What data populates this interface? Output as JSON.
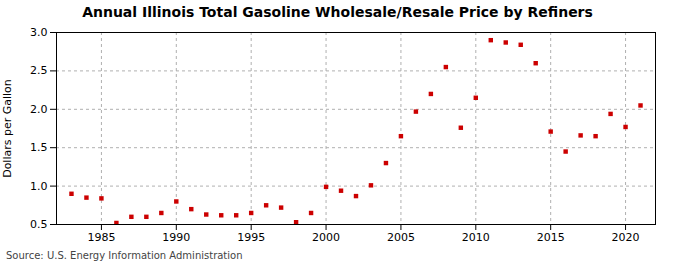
{
  "chart_data": {
    "type": "scatter",
    "title": "Annual Illinois Total Gasoline Wholesale/Resale Price by Refiners",
    "ylabel": "Dollars per Gallon",
    "annotations": [
      "Source: U.S. Energy Information Administration"
    ],
    "x": [
      1983,
      1984,
      1985,
      1986,
      1987,
      1988,
      1989,
      1990,
      1991,
      1992,
      1993,
      1994,
      1995,
      1996,
      1997,
      1998,
      1999,
      2000,
      2001,
      2002,
      2003,
      2004,
      2005,
      2006,
      2007,
      2008,
      2009,
      2010,
      2011,
      2012,
      2013,
      2014,
      2015,
      2016,
      2017,
      2018,
      2019,
      2020,
      2021
    ],
    "values": [
      0.9,
      0.85,
      0.84,
      0.52,
      0.6,
      0.6,
      0.65,
      0.8,
      0.7,
      0.63,
      0.62,
      0.62,
      0.65,
      0.75,
      0.72,
      0.53,
      0.65,
      0.99,
      0.94,
      0.87,
      1.01,
      1.3,
      1.65,
      1.97,
      2.2,
      2.55,
      1.76,
      2.15,
      2.9,
      2.87,
      2.84,
      2.6,
      1.71,
      1.45,
      1.66,
      1.65,
      1.94,
      1.77,
      2.05
    ],
    "color": "#cc0000",
    "marker": "square",
    "xlim": [
      1982,
      2022
    ],
    "ylim": [
      0.5,
      3.0
    ],
    "xticks": [
      1985,
      1990,
      1995,
      2000,
      2005,
      2010,
      2015,
      2020
    ],
    "yticks": [
      0.5,
      {
        "value": 1.0,
        "label": "1.0"
      },
      1.5,
      {
        "value": 2.0,
        "label": "2.0"
      },
      2.5,
      {
        "value": 3.0,
        "label": "3.0"
      }
    ],
    "grid": true
  }
}
